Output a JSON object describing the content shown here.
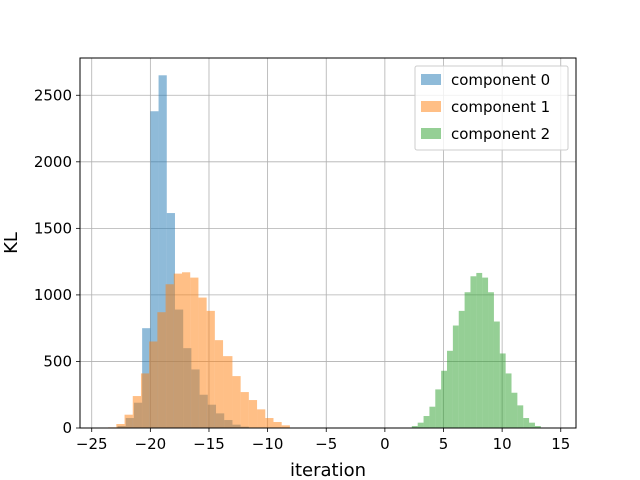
{
  "chart_data": {
    "type": "bar",
    "title": "",
    "xlabel": "iteration",
    "ylabel": "KL",
    "xlim": [
      -26,
      16.3
    ],
    "ylim": [
      0,
      2780
    ],
    "xticks": [
      -25,
      -20,
      -15,
      -10,
      -5,
      0,
      5,
      10,
      15
    ],
    "yticks": [
      0,
      500,
      1000,
      1500,
      2000,
      2500
    ],
    "grid": true,
    "legend_position": "top-right",
    "series": [
      {
        "name": "component 0",
        "color": "#1f77b4",
        "bins": [
          [
            -22.8,
            -22.1,
            15
          ],
          [
            -22.1,
            -21.4,
            75
          ],
          [
            -21.4,
            -20.7,
            190
          ],
          [
            -20.7,
            -20.0,
            750
          ],
          [
            -20.0,
            -19.3,
            2380
          ],
          [
            -19.3,
            -18.6,
            2650
          ],
          [
            -18.6,
            -17.9,
            1615
          ],
          [
            -17.9,
            -17.2,
            890
          ],
          [
            -17.2,
            -16.5,
            600
          ],
          [
            -16.5,
            -15.8,
            440
          ],
          [
            -15.8,
            -15.1,
            250
          ],
          [
            -15.1,
            -14.4,
            175
          ],
          [
            -14.4,
            -13.7,
            110
          ],
          [
            -13.7,
            -13.0,
            60
          ],
          [
            -13.0,
            -12.3,
            25
          ],
          [
            -12.3,
            -11.6,
            10
          ]
        ]
      },
      {
        "name": "component 1",
        "color": "#ff7f0e",
        "bins": [
          [
            -23.6,
            -22.9,
            5
          ],
          [
            -22.9,
            -22.2,
            30
          ],
          [
            -22.2,
            -21.5,
            100
          ],
          [
            -21.5,
            -20.8,
            240
          ],
          [
            -20.8,
            -20.1,
            410
          ],
          [
            -20.1,
            -19.4,
            650
          ],
          [
            -19.4,
            -18.7,
            870
          ],
          [
            -18.7,
            -18.0,
            1080
          ],
          [
            -18.0,
            -17.3,
            1160
          ],
          [
            -17.3,
            -16.6,
            1170
          ],
          [
            -16.6,
            -15.9,
            1130
          ],
          [
            -15.9,
            -15.2,
            980
          ],
          [
            -15.2,
            -14.5,
            880
          ],
          [
            -14.5,
            -13.8,
            660
          ],
          [
            -13.8,
            -13.0,
            540
          ],
          [
            -13.0,
            -12.3,
            390
          ],
          [
            -12.3,
            -11.6,
            270
          ],
          [
            -11.6,
            -10.9,
            210
          ],
          [
            -10.9,
            -10.2,
            140
          ],
          [
            -10.2,
            -9.5,
            75
          ],
          [
            -9.5,
            -8.8,
            45
          ],
          [
            -8.8,
            -8.1,
            20
          ]
        ]
      },
      {
        "name": "component 2",
        "color": "#2ca02c",
        "bins": [
          [
            2.3,
            2.8,
            15
          ],
          [
            2.8,
            3.3,
            40
          ],
          [
            3.3,
            3.8,
            90
          ],
          [
            3.8,
            4.3,
            160
          ],
          [
            4.3,
            4.8,
            290
          ],
          [
            4.8,
            5.3,
            430
          ],
          [
            5.3,
            5.8,
            580
          ],
          [
            5.8,
            6.3,
            770
          ],
          [
            6.3,
            6.8,
            880
          ],
          [
            6.8,
            7.3,
            1020
          ],
          [
            7.3,
            7.8,
            1140
          ],
          [
            7.8,
            8.3,
            1165
          ],
          [
            8.3,
            8.8,
            1130
          ],
          [
            8.8,
            9.3,
            1020
          ],
          [
            9.3,
            9.8,
            800
          ],
          [
            9.8,
            10.3,
            560
          ],
          [
            10.3,
            10.8,
            410
          ],
          [
            10.8,
            11.3,
            265
          ],
          [
            11.3,
            11.8,
            170
          ],
          [
            11.8,
            12.3,
            75
          ],
          [
            12.3,
            12.8,
            40
          ],
          [
            12.8,
            13.3,
            15
          ]
        ]
      }
    ]
  }
}
